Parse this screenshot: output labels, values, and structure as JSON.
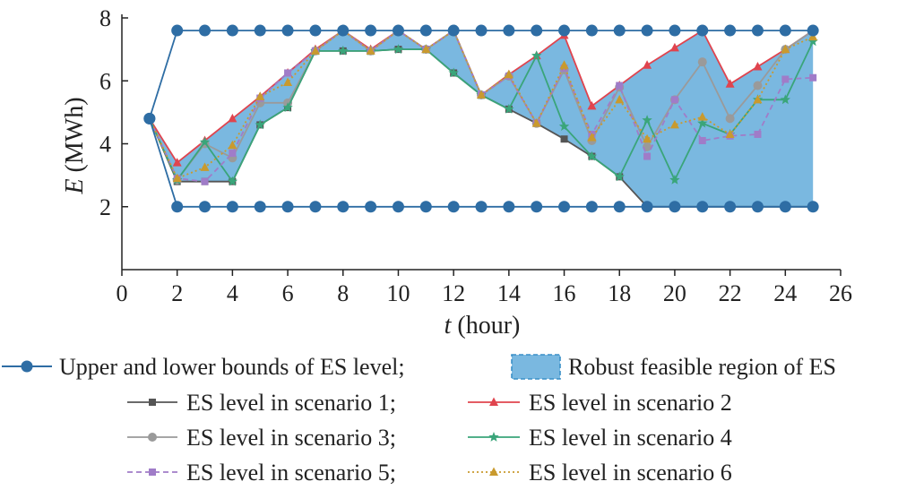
{
  "chart_data": {
    "type": "line",
    "xlabel": {
      "var": "t",
      "unit": " (hour)"
    },
    "ylabel": {
      "var": "E",
      "unit": " (MWh)"
    },
    "xlim": [
      0,
      26
    ],
    "ylim": [
      0,
      8
    ],
    "xticks": [
      0,
      2,
      4,
      6,
      8,
      10,
      12,
      14,
      16,
      18,
      20,
      22,
      24,
      26
    ],
    "yticks": [
      2,
      4,
      6,
      8
    ],
    "x": [
      1,
      2,
      3,
      4,
      5,
      6,
      7,
      8,
      9,
      10,
      11,
      12,
      13,
      14,
      15,
      16,
      17,
      18,
      19,
      20,
      21,
      22,
      23,
      24,
      25
    ],
    "bounds": {
      "name": "Upper and lower bounds of ES level;",
      "color": "#2e6da4",
      "upper": [
        4.8,
        7.6,
        7.6,
        7.6,
        7.6,
        7.6,
        7.6,
        7.6,
        7.6,
        7.6,
        7.6,
        7.6,
        7.6,
        7.6,
        7.6,
        7.6,
        7.6,
        7.6,
        7.6,
        7.6,
        7.6,
        7.6,
        7.6,
        7.6,
        7.6
      ],
      "lower": [
        4.8,
        2.0,
        2.0,
        2.0,
        2.0,
        2.0,
        2.0,
        2.0,
        2.0,
        2.0,
        2.0,
        2.0,
        2.0,
        2.0,
        2.0,
        2.0,
        2.0,
        2.0,
        2.0,
        2.0,
        2.0,
        2.0,
        2.0,
        2.0,
        2.0
      ]
    },
    "region": {
      "name": "Robust feasible region of ES",
      "color": "#7ab8e0",
      "edge": "#3a8fc7",
      "upper": [
        4.8,
        3.4,
        4.1,
        4.8,
        5.5,
        6.3,
        7.0,
        7.6,
        7.0,
        7.6,
        7.0,
        7.6,
        5.55,
        6.2,
        6.8,
        7.45,
        5.2,
        5.85,
        6.5,
        7.05,
        7.6,
        5.9,
        6.45,
        7.0,
        7.6
      ],
      "lower": [
        4.8,
        2.8,
        2.8,
        2.8,
        4.6,
        5.15,
        6.95,
        6.95,
        6.95,
        7.0,
        7.0,
        6.25,
        5.55,
        5.1,
        4.65,
        4.15,
        3.6,
        2.95,
        2.0,
        2.0,
        2.0,
        2.0,
        2.0,
        2.0,
        2.0
      ]
    },
    "series": [
      {
        "name": "ES level in scenario 1;",
        "color": "#555555",
        "marker": "square",
        "dash": "solid",
        "values": [
          4.8,
          2.8,
          2.8,
          2.8,
          4.6,
          5.15,
          6.95,
          6.95,
          6.95,
          7.0,
          7.0,
          6.25,
          5.55,
          5.1,
          4.65,
          4.15,
          3.6,
          2.95,
          2.0,
          2.0,
          2.0,
          2.0,
          2.0,
          2.0,
          2.0
        ]
      },
      {
        "name": "ES level in scenario 2",
        "color": "#e0444e",
        "marker": "triangle",
        "dash": "solid",
        "values": [
          4.8,
          3.4,
          4.1,
          4.8,
          5.5,
          6.25,
          7.0,
          7.6,
          7.0,
          7.6,
          7.0,
          7.6,
          5.55,
          6.2,
          6.8,
          7.45,
          5.2,
          5.85,
          6.5,
          7.05,
          7.6,
          5.9,
          6.45,
          7.0,
          7.6
        ]
      },
      {
        "name": "ES level in scenario 3;",
        "color": "#9a9a9a",
        "marker": "circle",
        "dash": "solid",
        "values": [
          4.8,
          2.85,
          4.0,
          3.55,
          5.3,
          5.3,
          6.95,
          7.6,
          6.95,
          7.6,
          7.0,
          7.6,
          5.55,
          6.15,
          4.65,
          6.35,
          4.1,
          5.8,
          3.9,
          5.4,
          6.6,
          4.8,
          5.85,
          7.0,
          7.6
        ]
      },
      {
        "name": "ES level in scenario 4",
        "color": "#3aa57a",
        "marker": "star",
        "dash": "solid",
        "values": [
          4.8,
          2.85,
          4.05,
          2.8,
          4.6,
          5.15,
          6.95,
          6.95,
          6.95,
          7.0,
          7.0,
          6.25,
          5.55,
          5.1,
          6.8,
          4.55,
          3.6,
          2.95,
          4.75,
          2.85,
          4.65,
          4.3,
          5.4,
          5.4,
          7.25
        ]
      },
      {
        "name": "ES level in scenario 5;",
        "color": "#a07cc8",
        "marker": "square",
        "dash": "dashed",
        "values": [
          4.8,
          2.9,
          2.8,
          3.7,
          5.45,
          6.25,
          6.95,
          7.6,
          6.95,
          7.6,
          7.0,
          7.6,
          5.55,
          6.15,
          4.65,
          6.4,
          4.3,
          5.85,
          3.6,
          5.4,
          4.1,
          4.25,
          4.3,
          6.05,
          6.1
        ]
      },
      {
        "name": "ES level in scenario 6",
        "color": "#c99a2e",
        "marker": "triangle",
        "dash": "dotted",
        "values": [
          4.8,
          2.9,
          3.25,
          3.95,
          5.5,
          5.95,
          6.95,
          7.6,
          6.95,
          7.6,
          7.0,
          7.6,
          5.55,
          6.2,
          4.65,
          6.5,
          4.2,
          5.4,
          4.15,
          4.6,
          4.85,
          4.3,
          5.4,
          7.0,
          7.4
        ]
      }
    ]
  }
}
